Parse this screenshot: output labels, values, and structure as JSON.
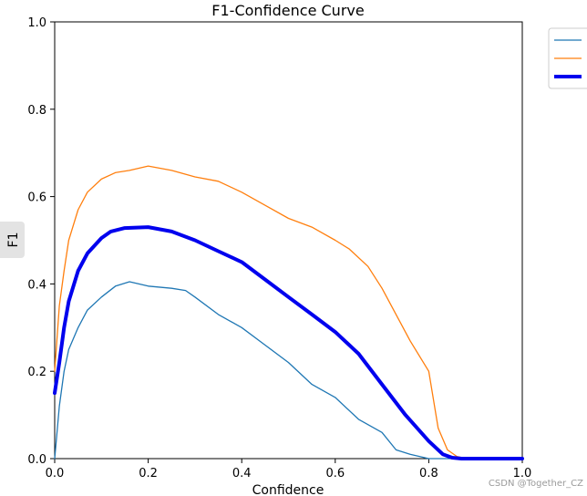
{
  "chart_data": {
    "type": "line",
    "title": "F1-Confidence Curve",
    "xlabel": "Confidence",
    "ylabel": "F1",
    "xlim": [
      0,
      1
    ],
    "ylim": [
      0,
      1
    ],
    "xticks": [
      "0.0",
      "0.2",
      "0.4",
      "0.6",
      "0.8",
      "1.0"
    ],
    "yticks": [
      "0.0",
      "0.2",
      "0.4",
      "0.6",
      "0.8",
      "1.0"
    ],
    "legend_position": "outside top-right",
    "series": [
      {
        "name": "",
        "color": "#1f77b4",
        "width": "thin",
        "x": [
          0,
          0.01,
          0.02,
          0.03,
          0.05,
          0.07,
          0.1,
          0.13,
          0.16,
          0.2,
          0.25,
          0.28,
          0.3,
          0.35,
          0.4,
          0.45,
          0.5,
          0.55,
          0.6,
          0.65,
          0.7,
          0.73,
          0.76,
          0.8,
          0.82,
          1.0
        ],
        "values": [
          0,
          0.12,
          0.2,
          0.25,
          0.3,
          0.34,
          0.37,
          0.395,
          0.405,
          0.395,
          0.39,
          0.385,
          0.37,
          0.33,
          0.3,
          0.26,
          0.22,
          0.17,
          0.14,
          0.09,
          0.06,
          0.02,
          0.01,
          0,
          0,
          0
        ]
      },
      {
        "name": "",
        "color": "#ff7f0e",
        "width": "thin",
        "x": [
          0,
          0.01,
          0.02,
          0.03,
          0.05,
          0.07,
          0.1,
          0.13,
          0.16,
          0.2,
          0.25,
          0.3,
          0.35,
          0.4,
          0.45,
          0.5,
          0.55,
          0.6,
          0.63,
          0.67,
          0.7,
          0.73,
          0.76,
          0.8,
          0.82,
          0.84,
          0.86,
          0.88,
          1.0
        ],
        "values": [
          0.2,
          0.35,
          0.43,
          0.5,
          0.57,
          0.61,
          0.64,
          0.655,
          0.66,
          0.67,
          0.66,
          0.645,
          0.635,
          0.61,
          0.58,
          0.55,
          0.53,
          0.5,
          0.48,
          0.44,
          0.39,
          0.33,
          0.27,
          0.2,
          0.07,
          0.02,
          0.005,
          0,
          0
        ]
      },
      {
        "name": "",
        "color": "#0000ee",
        "width": "thick",
        "x": [
          0,
          0.01,
          0.02,
          0.03,
          0.05,
          0.07,
          0.1,
          0.12,
          0.15,
          0.2,
          0.25,
          0.3,
          0.35,
          0.4,
          0.45,
          0.5,
          0.55,
          0.6,
          0.65,
          0.7,
          0.75,
          0.8,
          0.83,
          0.85,
          0.87,
          0.9,
          1.0
        ],
        "values": [
          0.15,
          0.22,
          0.3,
          0.36,
          0.43,
          0.47,
          0.505,
          0.52,
          0.528,
          0.53,
          0.52,
          0.5,
          0.475,
          0.45,
          0.41,
          0.37,
          0.33,
          0.29,
          0.24,
          0.17,
          0.1,
          0.04,
          0.01,
          0.002,
          0,
          0,
          0
        ]
      }
    ]
  },
  "watermark": "CSDN @Together_CZ"
}
